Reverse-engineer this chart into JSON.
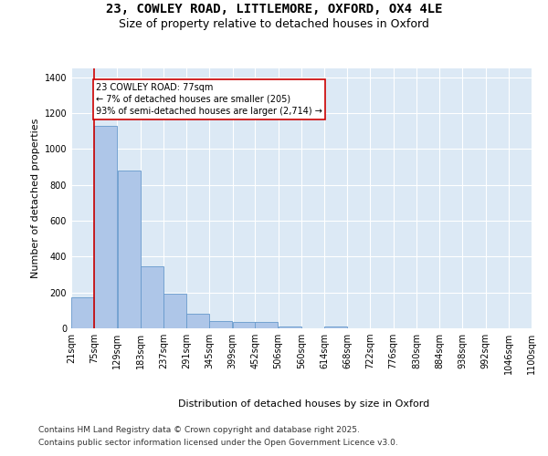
{
  "title_line1": "23, COWLEY ROAD, LITTLEMORE, OXFORD, OX4 4LE",
  "title_line2": "Size of property relative to detached houses in Oxford",
  "xlabel": "Distribution of detached houses by size in Oxford",
  "ylabel": "Number of detached properties",
  "bar_color": "#aec6e8",
  "bar_edge_color": "#6699cc",
  "background_color": "#dce9f5",
  "annotation_text": "23 COWLEY ROAD: 77sqm\n← 7% of detached houses are smaller (205)\n93% of semi-detached houses are larger (2,714) →",
  "annotation_box_color": "#ffffff",
  "annotation_edge_color": "#cc0000",
  "vline_color": "#cc0000",
  "vline_x": 75,
  "bins": [
    21,
    75,
    129,
    183,
    237,
    291,
    345,
    399,
    452,
    506,
    560,
    614,
    668,
    722,
    776,
    830,
    884,
    938,
    992,
    1046,
    1100
  ],
  "bin_labels": [
    "21sqm",
    "75sqm",
    "129sqm",
    "183sqm",
    "237sqm",
    "291sqm",
    "345sqm",
    "399sqm",
    "452sqm",
    "506sqm",
    "560sqm",
    "614sqm",
    "668sqm",
    "722sqm",
    "776sqm",
    "830sqm",
    "884sqm",
    "938sqm",
    "992sqm",
    "1046sqm",
    "1100sqm"
  ],
  "counts": [
    175,
    1130,
    880,
    345,
    195,
    80,
    42,
    35,
    35,
    12,
    0,
    12,
    0,
    0,
    0,
    0,
    0,
    0,
    0,
    0
  ],
  "ylim": [
    0,
    1450
  ],
  "yticks": [
    0,
    200,
    400,
    600,
    800,
    1000,
    1200,
    1400
  ],
  "footer_line1": "Contains HM Land Registry data © Crown copyright and database right 2025.",
  "footer_line2": "Contains public sector information licensed under the Open Government Licence v3.0.",
  "title_fontsize": 10,
  "subtitle_fontsize": 9,
  "axis_label_fontsize": 8,
  "tick_fontsize": 7,
  "footer_fontsize": 6.5
}
